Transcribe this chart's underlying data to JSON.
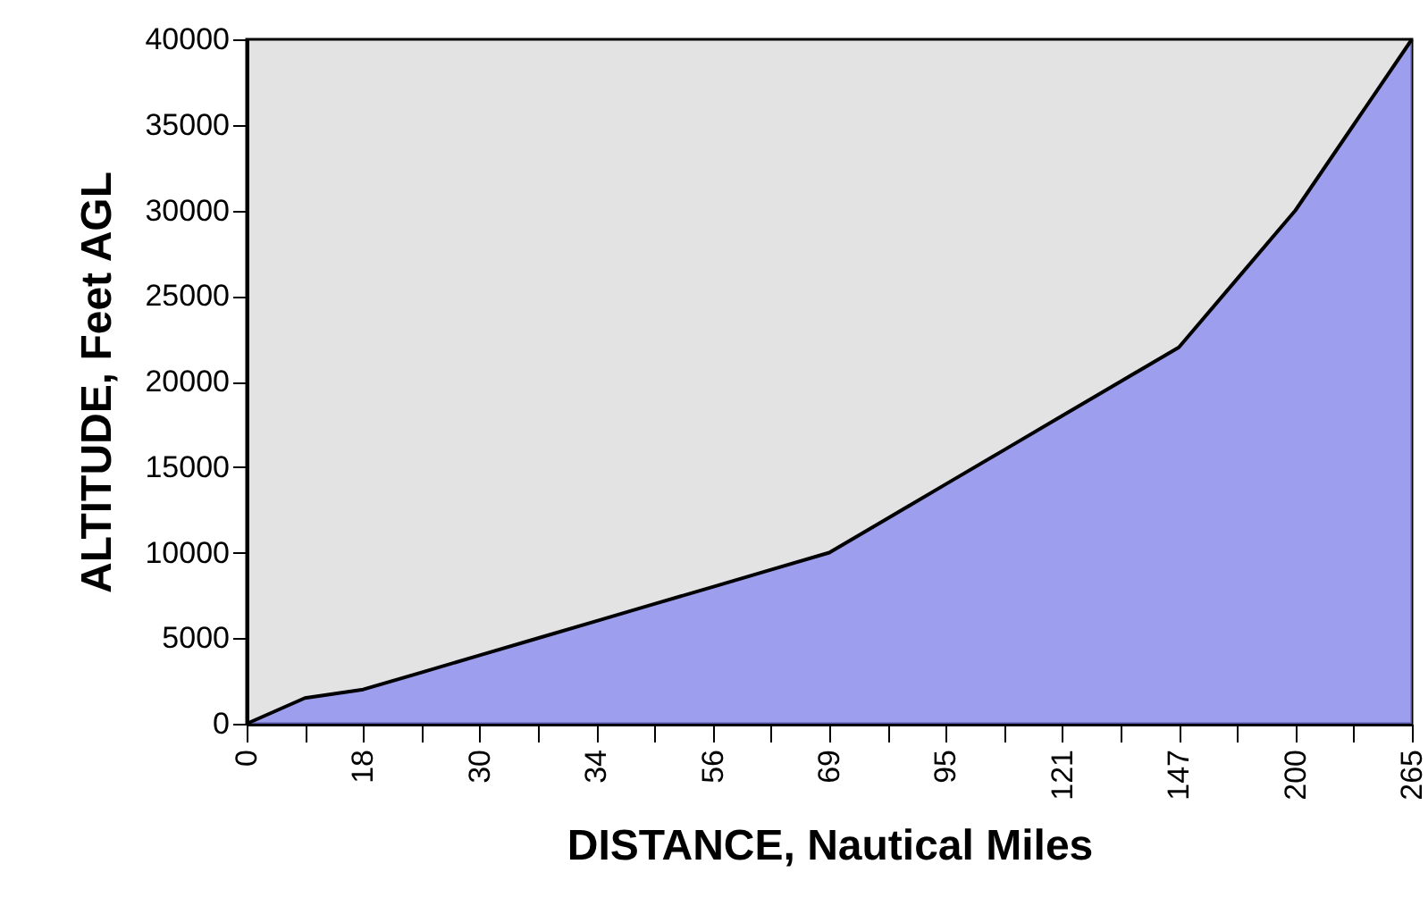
{
  "chart_data": {
    "type": "area",
    "xlabel": "DISTANCE, Nautical Miles",
    "ylabel": "ALTITUDE, Feet AGL",
    "categories": [
      "0",
      null,
      "18",
      null,
      "30",
      null,
      "34",
      null,
      "56",
      null,
      "69",
      null,
      "95",
      null,
      "121",
      null,
      "147",
      null,
      "200",
      null,
      "265"
    ],
    "series": [
      {
        "color": "#8080f4",
        "values": [
          0,
          1500,
          2000,
          3000,
          4000,
          5000,
          6000,
          7000,
          8000,
          9000,
          10000,
          12000,
          14000,
          16000,
          18000,
          20000,
          22000,
          26000,
          30000,
          35000,
          40000
        ]
      }
    ],
    "ylim": [
      0,
      40000
    ],
    "yticks": [
      0,
      5000,
      10000,
      15000,
      20000,
      25000,
      30000,
      35000,
      40000
    ],
    "grid": false,
    "legend": false
  }
}
